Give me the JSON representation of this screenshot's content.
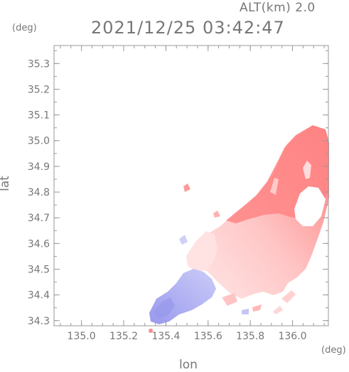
{
  "header": {
    "alt_label": "ALT(km) 2.0",
    "timestamp": "2021/12/25 03:42:47"
  },
  "axes": {
    "x_label": "lon",
    "y_label": "lat",
    "x_unit": "(deg)",
    "y_unit": "(deg)",
    "x_ticks": [
      "135.0",
      "135.2",
      "135.4",
      "135.6",
      "135.8",
      "136.0"
    ],
    "y_ticks": [
      "35.3",
      "35.2",
      "35.1",
      "35.0",
      "34.9",
      "34.8",
      "34.7",
      "34.6",
      "34.5",
      "34.4",
      "34.3"
    ],
    "x_range": [
      134.87,
      136.17
    ],
    "y_range": [
      34.28,
      35.37
    ]
  },
  "colors": {
    "positive": "#ff7a7a",
    "positive_light": "#ffcccc",
    "negative": "#8888ee",
    "negative_light": "#c8c8f8",
    "frame": "#999999"
  }
}
